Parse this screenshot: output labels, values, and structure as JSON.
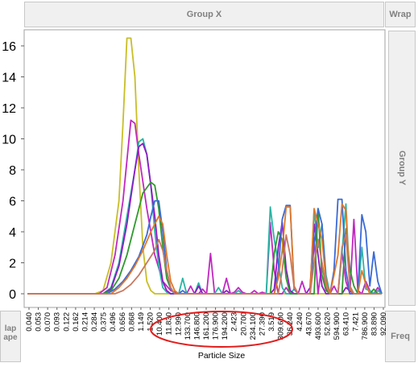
{
  "panel": {
    "group_x_label": "Group X",
    "wrap_label": "Wrap",
    "group_y_label": "Group Y",
    "freq_label": "Freq",
    "left_clip_label_1": "lap",
    "left_clip_label_2": "ape"
  },
  "annotation": {
    "color": "#e11d1d",
    "shape": "ellipse"
  },
  "chart_data": {
    "type": "line",
    "title": "",
    "xlabel": "Particle Size",
    "ylabel": "",
    "ylim": [
      0,
      17
    ],
    "yticks": [
      0,
      2,
      4,
      6,
      8,
      10,
      12,
      14,
      16
    ],
    "grid": false,
    "legend": "none",
    "categories": [
      "0.040",
      "0.053",
      "0.070",
      "0.093",
      "0.122",
      "0.162",
      "0.214",
      "0.284",
      "0.375",
      "0.496",
      "0.656",
      "0.868",
      "1.149",
      "1.520",
      "10.400",
      "11.830",
      "12.990",
      "133.700",
      "146.800",
      "161.200",
      "176.900",
      "194.200",
      "2.423",
      "20.700",
      "234.100",
      "27.390",
      "3.519",
      "309.600",
      "36.240",
      "4.240",
      "43.670",
      "493.600",
      "52.620",
      "594.900",
      "63.410",
      "7.421",
      "786.900",
      "83.890",
      "92.090"
    ],
    "n_points": 90,
    "series": [
      {
        "color": "#c8be28",
        "points": [
          [
            0,
            0
          ],
          [
            17,
            0
          ],
          [
            19,
            0.2
          ],
          [
            21,
            2.0
          ],
          [
            23,
            6
          ],
          [
            24,
            11
          ],
          [
            25,
            16.5
          ],
          [
            26,
            16.5
          ],
          [
            27,
            14
          ],
          [
            28,
            8
          ],
          [
            29,
            3
          ],
          [
            30,
            0.8
          ],
          [
            31,
            0.2
          ],
          [
            32,
            0
          ],
          [
            89,
            0
          ]
        ]
      },
      {
        "color": "#c028c0",
        "points": [
          [
            0,
            0
          ],
          [
            18,
            0
          ],
          [
            20,
            0.4
          ],
          [
            22,
            2.5
          ],
          [
            24,
            6
          ],
          [
            26,
            11.2
          ],
          [
            27,
            11
          ],
          [
            28,
            9
          ],
          [
            30,
            5.5
          ],
          [
            32,
            2.5
          ],
          [
            34,
            0.8
          ],
          [
            36,
            0.2
          ],
          [
            38,
            0
          ],
          [
            40,
            0
          ],
          [
            41,
            0.5
          ],
          [
            42,
            0
          ],
          [
            43,
            0
          ],
          [
            44,
            0.3
          ],
          [
            45,
            0
          ],
          [
            46,
            2.6
          ],
          [
            47,
            0
          ],
          [
            49,
            0
          ],
          [
            50,
            1.0
          ],
          [
            51,
            0
          ],
          [
            52,
            0.1
          ],
          [
            53,
            0.4
          ],
          [
            54,
            0.1
          ],
          [
            55,
            0
          ],
          [
            56,
            0
          ],
          [
            57,
            0.2
          ],
          [
            58,
            0
          ],
          [
            59,
            0.1
          ],
          [
            60,
            0
          ],
          [
            61,
            4.6
          ],
          [
            62,
            1.5
          ],
          [
            63,
            0
          ],
          [
            64,
            0
          ],
          [
            65,
            0.4
          ],
          [
            66,
            0
          ],
          [
            67,
            0
          ],
          [
            68,
            0
          ],
          [
            69,
            0.8
          ],
          [
            70,
            0
          ],
          [
            71,
            0
          ],
          [
            72,
            3.6
          ],
          [
            73,
            0
          ],
          [
            74,
            2.0
          ],
          [
            75,
            0.3
          ],
          [
            76,
            0
          ],
          [
            77,
            0.5
          ],
          [
            78,
            0
          ],
          [
            79,
            2.7
          ],
          [
            80,
            0.8
          ],
          [
            81,
            0
          ],
          [
            82,
            4.8
          ],
          [
            83,
            0.2
          ],
          [
            84,
            0
          ],
          [
            85,
            0.8
          ],
          [
            86,
            0.2
          ],
          [
            87,
            0
          ],
          [
            88,
            0.4
          ],
          [
            89,
            0
          ]
        ]
      },
      {
        "color": "#2ab4a4",
        "points": [
          [
            0,
            0
          ],
          [
            19,
            0
          ],
          [
            21,
            0.4
          ],
          [
            23,
            2.0
          ],
          [
            25,
            5
          ],
          [
            27,
            8
          ],
          [
            28,
            9.8
          ],
          [
            29,
            10
          ],
          [
            30,
            9
          ],
          [
            31,
            7
          ],
          [
            32,
            4
          ],
          [
            33,
            1.8
          ],
          [
            34,
            0.4
          ],
          [
            35,
            0.1
          ],
          [
            36,
            0
          ],
          [
            38,
            0
          ],
          [
            39,
            1.0
          ],
          [
            40,
            0
          ],
          [
            42,
            0
          ],
          [
            43,
            0.7
          ],
          [
            44,
            0
          ],
          [
            47,
            0
          ],
          [
            48,
            0.4
          ],
          [
            49,
            0
          ],
          [
            52,
            0
          ],
          [
            53,
            0.2
          ],
          [
            54,
            0
          ],
          [
            60,
            0
          ],
          [
            61,
            5.6
          ],
          [
            62,
            3.5
          ],
          [
            63,
            2.0
          ],
          [
            64,
            0.4
          ],
          [
            65,
            0
          ],
          [
            66,
            0
          ],
          [
            67,
            0.3
          ],
          [
            68,
            0
          ],
          [
            71,
            0
          ],
          [
            72,
            5.4
          ],
          [
            73,
            3.0
          ],
          [
            74,
            4.5
          ],
          [
            75,
            1.2
          ],
          [
            76,
            0
          ],
          [
            77,
            0
          ],
          [
            78,
            0
          ],
          [
            79,
            2.6
          ],
          [
            80,
            5.8
          ],
          [
            81,
            0.5
          ],
          [
            82,
            0
          ],
          [
            83,
            0
          ],
          [
            84,
            3.0
          ],
          [
            85,
            0.3
          ],
          [
            86,
            0.2
          ],
          [
            87,
            0
          ],
          [
            88,
            0.2
          ],
          [
            89,
            0
          ]
        ]
      },
      {
        "color": "#9018c8",
        "points": [
          [
            0,
            0
          ],
          [
            19,
            0
          ],
          [
            21,
            0.3
          ],
          [
            23,
            1.8
          ],
          [
            25,
            4.5
          ],
          [
            27,
            8
          ],
          [
            28,
            9.5
          ],
          [
            29,
            9.7
          ],
          [
            30,
            9
          ],
          [
            31,
            7
          ],
          [
            32,
            5
          ],
          [
            33,
            2.5
          ],
          [
            34,
            0.8
          ],
          [
            35,
            0.2
          ],
          [
            36,
            0
          ],
          [
            42,
            0
          ],
          [
            43,
            0.5
          ],
          [
            44,
            0
          ],
          [
            49,
            0
          ],
          [
            50,
            0.2
          ],
          [
            51,
            0
          ],
          [
            61,
            0
          ],
          [
            62,
            0.3
          ],
          [
            63,
            3.0
          ],
          [
            64,
            4.6
          ],
          [
            65,
            1.6
          ],
          [
            66,
            0.2
          ],
          [
            67,
            0
          ],
          [
            70,
            0
          ],
          [
            71,
            0.4
          ],
          [
            72,
            4.5
          ],
          [
            73,
            2.5
          ],
          [
            74,
            0.5
          ],
          [
            75,
            0
          ],
          [
            79,
            0
          ],
          [
            80,
            0.4
          ],
          [
            81,
            0.2
          ],
          [
            82,
            0
          ],
          [
            89,
            0
          ]
        ]
      },
      {
        "color": "#2e9a2e",
        "points": [
          [
            0,
            0
          ],
          [
            19,
            0
          ],
          [
            21,
            0.2
          ],
          [
            23,
            1.0
          ],
          [
            25,
            2.5
          ],
          [
            27,
            4.5
          ],
          [
            29,
            6.5
          ],
          [
            31,
            7.2
          ],
          [
            32,
            7
          ],
          [
            33,
            5.5
          ],
          [
            34,
            3
          ],
          [
            35,
            1.0
          ],
          [
            36,
            0.3
          ],
          [
            37,
            0
          ],
          [
            61,
            0
          ],
          [
            62,
            2.6
          ],
          [
            63,
            4.0
          ],
          [
            64,
            3.5
          ],
          [
            65,
            1.0
          ],
          [
            66,
            0
          ],
          [
            72,
            0
          ],
          [
            73,
            5.5
          ],
          [
            74,
            1.2
          ],
          [
            75,
            0.2
          ],
          [
            76,
            0
          ],
          [
            79,
            0
          ],
          [
            80,
            4.2
          ],
          [
            81,
            1.6
          ],
          [
            82,
            0.5
          ],
          [
            83,
            0
          ],
          [
            86,
            0
          ],
          [
            87,
            0.3
          ],
          [
            88,
            0
          ],
          [
            89,
            0
          ]
        ]
      },
      {
        "color": "#3a6ad8",
        "points": [
          [
            0,
            0
          ],
          [
            20,
            0
          ],
          [
            22,
            0.3
          ],
          [
            24,
            0.8
          ],
          [
            26,
            1.5
          ],
          [
            28,
            2.4
          ],
          [
            30,
            3.8
          ],
          [
            31,
            5
          ],
          [
            32,
            6
          ],
          [
            33,
            6
          ],
          [
            34,
            4
          ],
          [
            35,
            1.5
          ],
          [
            36,
            0.3
          ],
          [
            37,
            0
          ],
          [
            38,
            0
          ],
          [
            39,
            0.2
          ],
          [
            40,
            0
          ],
          [
            62,
            0
          ],
          [
            63,
            1.5
          ],
          [
            64,
            4.8
          ],
          [
            65,
            5.7
          ],
          [
            66,
            5.7
          ],
          [
            67,
            0.3
          ],
          [
            68,
            0
          ],
          [
            71,
            0
          ],
          [
            72,
            3.2
          ],
          [
            73,
            5.5
          ],
          [
            74,
            4.5
          ],
          [
            75,
            0.8
          ],
          [
            76,
            0
          ],
          [
            77,
            1.5
          ],
          [
            78,
            6.1
          ],
          [
            79,
            6.1
          ],
          [
            80,
            1.5
          ],
          [
            81,
            0
          ],
          [
            83,
            0
          ],
          [
            84,
            5.1
          ],
          [
            85,
            4.0
          ],
          [
            86,
            0.5
          ],
          [
            87,
            2.7
          ],
          [
            88,
            0.8
          ],
          [
            89,
            0
          ]
        ]
      },
      {
        "color": "#e07828",
        "points": [
          [
            0,
            0
          ],
          [
            21,
            0
          ],
          [
            23,
            0.4
          ],
          [
            25,
            1.0
          ],
          [
            27,
            1.8
          ],
          [
            29,
            2.8
          ],
          [
            31,
            4.0
          ],
          [
            33,
            5.0
          ],
          [
            34,
            4.5
          ],
          [
            35,
            2.5
          ],
          [
            36,
            0.8
          ],
          [
            37,
            0.2
          ],
          [
            38,
            0
          ],
          [
            62,
            0
          ],
          [
            63,
            1.0
          ],
          [
            64,
            2.8
          ],
          [
            65,
            5.6
          ],
          [
            66,
            5.6
          ],
          [
            67,
            0.5
          ],
          [
            68,
            0
          ],
          [
            71,
            0
          ],
          [
            72,
            5.5
          ],
          [
            73,
            4.5
          ],
          [
            74,
            3.5
          ],
          [
            75,
            0.8
          ],
          [
            76,
            0
          ],
          [
            77,
            1.2
          ],
          [
            78,
            2.5
          ],
          [
            79,
            5.8
          ],
          [
            80,
            5.4
          ],
          [
            81,
            0.3
          ],
          [
            82,
            0
          ],
          [
            83,
            0
          ],
          [
            84,
            1.5
          ],
          [
            85,
            0.6
          ],
          [
            86,
            0
          ],
          [
            89,
            0
          ]
        ]
      },
      {
        "color": "#c87860",
        "points": [
          [
            0,
            0
          ],
          [
            22,
            0
          ],
          [
            24,
            0.2
          ],
          [
            26,
            0.6
          ],
          [
            28,
            1.2
          ],
          [
            30,
            2.0
          ],
          [
            32,
            2.8
          ],
          [
            33,
            3.5
          ],
          [
            34,
            2.8
          ],
          [
            35,
            1.5
          ],
          [
            36,
            0.4
          ],
          [
            37,
            0
          ],
          [
            63,
            0
          ],
          [
            64,
            1.5
          ],
          [
            65,
            3.8
          ],
          [
            66,
            2.5
          ],
          [
            67,
            0.4
          ],
          [
            68,
            0
          ],
          [
            71,
            0
          ],
          [
            72,
            2.0
          ],
          [
            73,
            3.5
          ],
          [
            74,
            2.0
          ],
          [
            75,
            0.5
          ],
          [
            76,
            0
          ],
          [
            78,
            0
          ],
          [
            79,
            3.0
          ],
          [
            80,
            3.8
          ],
          [
            81,
            0.5
          ],
          [
            82,
            0
          ],
          [
            89,
            0
          ]
        ]
      }
    ]
  }
}
